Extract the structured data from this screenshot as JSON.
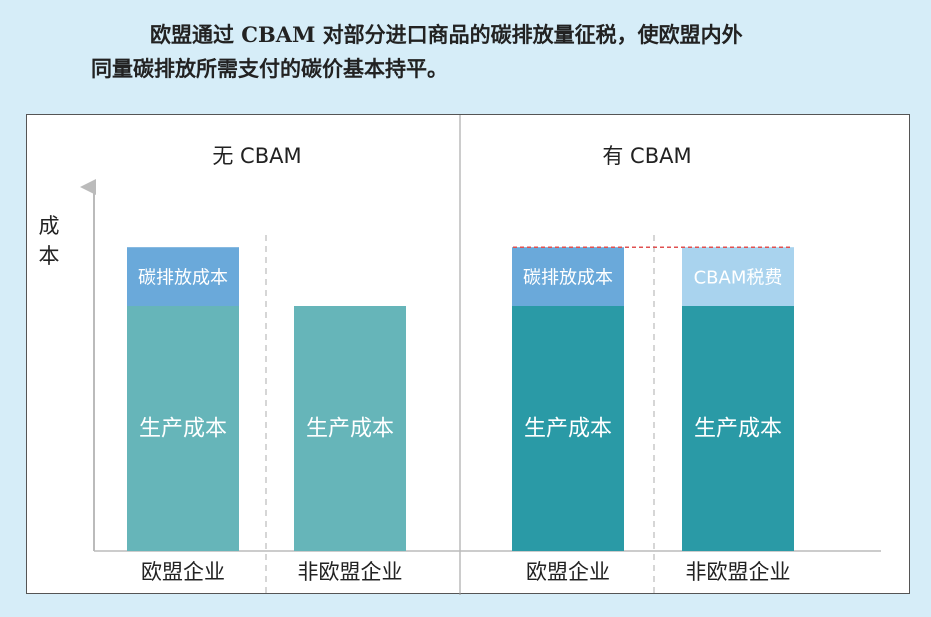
{
  "caption": {
    "line1": "欧盟通过 CBAM 对部分进口商品的碳排放量征税，使欧盟内外",
    "line2": "同量碳排放所需支付的碳价基本持平。"
  },
  "colors": {
    "production_light": "#66b5b9",
    "production_dark": "#2a9aa6",
    "carbon_cost": "#6aa9da",
    "cbam_tax": "#a9d3ee",
    "reference_line": "#e05050"
  },
  "chart_data": {
    "type": "bar",
    "stacked": true,
    "ylabel": "成本",
    "panels": [
      {
        "title": "无 CBAM",
        "categories": [
          "欧盟企业",
          "非欧盟企业"
        ],
        "series": [
          {
            "name": "生产成本",
            "values": [
              1.0,
              1.0
            ]
          },
          {
            "name": "碳排放成本",
            "values": [
              0.24,
              0
            ]
          }
        ],
        "segment_labels": [
          [
            "生产成本",
            "碳排放成本"
          ],
          [
            "生产成本",
            ""
          ]
        ]
      },
      {
        "title": "有 CBAM",
        "categories": [
          "欧盟企业",
          "非欧盟企业"
        ],
        "series": [
          {
            "name": "生产成本",
            "values": [
              1.0,
              1.0
            ]
          },
          {
            "name": "碳排放成本",
            "values": [
              0.24,
              0
            ]
          },
          {
            "name": "CBAM税费",
            "values": [
              0,
              0.24
            ]
          }
        ],
        "segment_labels": [
          [
            "生产成本",
            "碳排放成本",
            ""
          ],
          [
            "生产成本",
            "",
            "CBAM税费"
          ]
        ],
        "reference_line": {
          "value": 1.24
        }
      }
    ],
    "grid": false,
    "legend": "none"
  }
}
